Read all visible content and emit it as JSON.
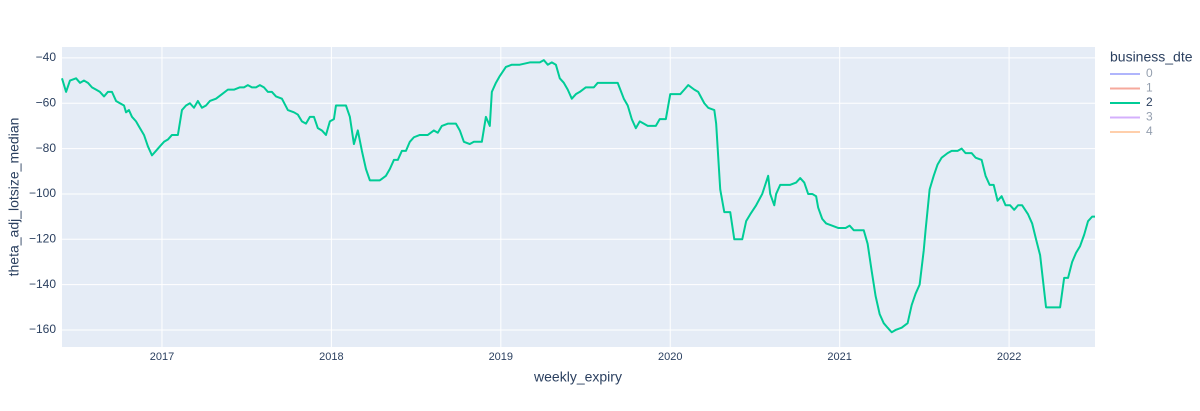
{
  "chart_data": {
    "type": "line",
    "xlabel": "weekly_expiry",
    "ylabel": "theta_adj_lotsize_median",
    "legend_title": "business_dte",
    "legend_position": "right",
    "grid": true,
    "background": "#e5ecf6",
    "xlim": [
      2016.41,
      2022.507
    ],
    "xticks": [
      2017,
      2018,
      2019,
      2020,
      2021,
      2022
    ],
    "ylim": [
      -167.5,
      -35.2
    ],
    "yticks": [
      {
        "value": -40,
        "label": "−40"
      },
      {
        "value": -60,
        "label": "−60"
      },
      {
        "value": -80,
        "label": "−80"
      },
      {
        "value": -100,
        "label": "−100"
      },
      {
        "value": -120,
        "label": "−120"
      },
      {
        "value": -140,
        "label": "−140"
      },
      {
        "value": -160,
        "label": "−160"
      }
    ],
    "x": [
      2016.41,
      2016.434,
      2016.457,
      2016.493,
      2016.516,
      2016.54,
      2016.563,
      2016.587,
      2016.611,
      2016.634,
      2016.658,
      2016.681,
      2016.705,
      2016.729,
      2016.752,
      2016.776,
      2016.788,
      2016.805,
      2016.823,
      2016.847,
      2016.87,
      2016.894,
      2016.917,
      2016.941,
      2016.965,
      2016.988,
      2017.012,
      2017.035,
      2017.059,
      2017.094,
      2017.118,
      2017.142,
      2017.165,
      2017.189,
      2017.212,
      2017.236,
      2017.26,
      2017.283,
      2017.319,
      2017.354,
      2017.389,
      2017.425,
      2017.46,
      2017.484,
      2017.507,
      2017.531,
      2017.555,
      2017.578,
      2017.602,
      2017.625,
      2017.649,
      2017.673,
      2017.708,
      2017.743,
      2017.779,
      2017.802,
      2017.826,
      2017.85,
      2017.873,
      2017.897,
      2017.92,
      2017.944,
      2017.968,
      2017.991,
      2018.015,
      2018.027,
      2018.05,
      2018.086,
      2018.109,
      2018.133,
      2018.156,
      2018.18,
      2018.204,
      2018.227,
      2018.263,
      2018.286,
      2018.322,
      2018.345,
      2018.369,
      2018.392,
      2018.416,
      2018.44,
      2018.463,
      2018.487,
      2018.522,
      2018.569,
      2018.605,
      2018.628,
      2018.652,
      2018.687,
      2018.735,
      2018.758,
      2018.782,
      2018.817,
      2018.841,
      2018.888,
      2018.912,
      2018.935,
      2018.947,
      2018.971,
      2018.994,
      2019.03,
      2019.065,
      2019.112,
      2019.171,
      2019.23,
      2019.254,
      2019.277,
      2019.301,
      2019.325,
      2019.348,
      2019.372,
      2019.395,
      2019.419,
      2019.443,
      2019.466,
      2019.502,
      2019.549,
      2019.572,
      2019.62,
      2019.667,
      2019.69,
      2019.726,
      2019.749,
      2019.773,
      2019.797,
      2019.82,
      2019.844,
      2019.867,
      2019.915,
      2019.938,
      2019.974,
      2020.0,
      2020.059,
      2020.083,
      2020.106,
      2020.142,
      2020.165,
      2020.201,
      2020.224,
      2020.26,
      2020.271,
      2020.295,
      2020.319,
      2020.354,
      2020.378,
      2020.425,
      2020.448,
      2020.472,
      2020.507,
      2020.543,
      2020.578,
      2020.59,
      2020.614,
      2020.625,
      2020.649,
      2020.684,
      2020.708,
      2020.743,
      2020.767,
      2020.791,
      2020.814,
      2020.838,
      2020.861,
      2020.873,
      2020.897,
      2020.92,
      2020.956,
      2020.991,
      2021.035,
      2021.059,
      2021.083,
      2021.142,
      2021.165,
      2021.189,
      2021.212,
      2021.236,
      2021.26,
      2021.283,
      2021.307,
      2021.33,
      2021.366,
      2021.401,
      2021.425,
      2021.448,
      2021.472,
      2021.496,
      2021.507,
      2021.531,
      2021.555,
      2021.578,
      2021.602,
      2021.637,
      2021.661,
      2021.696,
      2021.72,
      2021.743,
      2021.779,
      2021.802,
      2021.838,
      2021.861,
      2021.885,
      2021.909,
      2021.932,
      2021.956,
      2021.979,
      2022.006,
      2022.03,
      2022.053,
      2022.077,
      2022.112,
      2022.136,
      2022.159,
      2022.183,
      2022.218,
      2022.277,
      2022.301,
      2022.325,
      2022.348,
      2022.372,
      2022.395,
      2022.419,
      2022.443,
      2022.466,
      2022.49,
      2022.507
    ],
    "series": [
      {
        "name": "0",
        "color": "#636efa",
        "visible": "legendonly"
      },
      {
        "name": "1",
        "color": "#EF553B",
        "visible": "legendonly"
      },
      {
        "name": "2",
        "color": "#00cc96",
        "visible": true,
        "values": [
          -49,
          -55,
          -50,
          -49,
          -51,
          -50,
          -51,
          -53,
          -54,
          -55,
          -57,
          -55,
          -55,
          -59,
          -60,
          -61,
          -64,
          -63,
          -66,
          -68,
          -71,
          -74,
          -79,
          -83,
          -81,
          -79,
          -77,
          -76,
          -74,
          -74,
          -63,
          -61,
          -60,
          -62,
          -59,
          -62,
          -61,
          -59,
          -58,
          -56,
          -54,
          -54,
          -53,
          -53,
          -52,
          -53,
          -53,
          -52,
          -53,
          -55,
          -55,
          -57,
          -58,
          -63,
          -64,
          -65,
          -68,
          -69,
          -66,
          -66,
          -71,
          -72,
          -74,
          -68,
          -67,
          -61,
          -61,
          -61,
          -66,
          -78,
          -72,
          -81,
          -89,
          -94,
          -94,
          -94,
          -92,
          -89,
          -85,
          -85,
          -81,
          -81,
          -77,
          -75,
          -74,
          -74,
          -72,
          -73,
          -70,
          -69,
          -69,
          -72,
          -77,
          -78,
          -77,
          -77,
          -66,
          -70,
          -55,
          -51,
          -48,
          -44,
          -43,
          -43,
          -42,
          -42,
          -41,
          -43,
          -42,
          -43,
          -49,
          -51,
          -54,
          -58,
          -56,
          -55,
          -53,
          -53,
          -51,
          -51,
          -51,
          -51,
          -58,
          -61,
          -67,
          -71,
          -68,
          -69,
          -70,
          -70,
          -67,
          -67,
          -56,
          -56,
          -54,
          -52,
          -54,
          -55,
          -60,
          -62,
          -63,
          -69,
          -98,
          -108,
          -108,
          -120,
          -120,
          -112,
          -109,
          -105,
          -100,
          -92,
          -100,
          -105,
          -100,
          -96,
          -96,
          -96,
          -95,
          -93,
          -95,
          -100,
          -100,
          -101,
          -106,
          -111,
          -113,
          -114,
          -115,
          -115,
          -114,
          -116,
          -116,
          -122,
          -134,
          -145,
          -153,
          -157,
          -159,
          -161,
          -160,
          -159,
          -157,
          -149,
          -144,
          -140,
          -125,
          -116,
          -98,
          -92,
          -87,
          -84,
          -82,
          -81,
          -81,
          -80,
          -82,
          -82,
          -84,
          -85,
          -92,
          -96,
          -96,
          -103,
          -101,
          -105,
          -105,
          -107,
          -105,
          -105,
          -109,
          -113,
          -120,
          -127,
          -150,
          -150,
          -150,
          -137,
          -137,
          -130,
          -126,
          -123,
          -118,
          -112,
          -110,
          -110
        ]
      },
      {
        "name": "3",
        "color": "#ab63fa",
        "visible": "legendonly"
      },
      {
        "name": "4",
        "color": "#FFA15A",
        "visible": "legendonly"
      }
    ]
  }
}
